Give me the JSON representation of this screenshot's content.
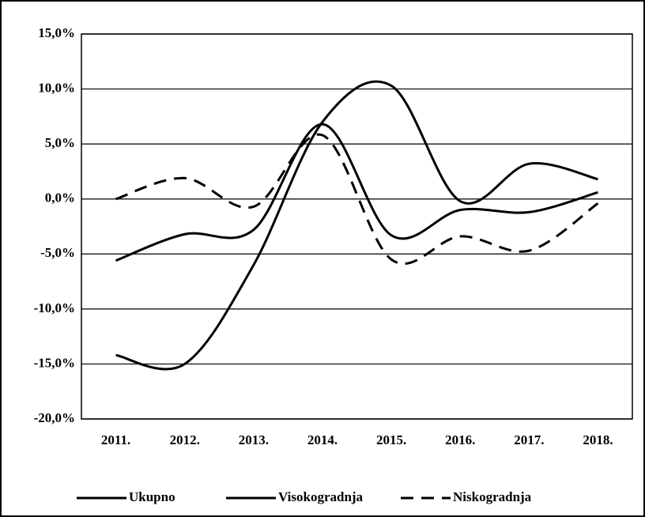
{
  "chart_data": {
    "type": "line",
    "categories": [
      "2011.",
      "2012.",
      "2013.",
      "2014.",
      "2015.",
      "2016.",
      "2017.",
      "2018."
    ],
    "series": [
      {
        "name": "Ukupno",
        "color": "#000000",
        "line_style": "solid",
        "values": [
          -5.6,
          -3.2,
          -2.8,
          6.8,
          -3.3,
          -1.0,
          -1.2,
          0.6
        ]
      },
      {
        "name": "Visokogradnja",
        "color": "#000000",
        "line_style": "solid",
        "values": [
          -14.2,
          -15.0,
          -6.0,
          7.0,
          10.3,
          -0.2,
          3.2,
          1.8
        ]
      },
      {
        "name": "Niskogradnja",
        "color": "#000000",
        "line_style": "dashed",
        "values": [
          0.0,
          1.9,
          -0.7,
          5.8,
          -5.5,
          -3.4,
          -4.7,
          -0.4
        ]
      }
    ],
    "ylim": [
      -20,
      15
    ],
    "yticks": [
      {
        "value": -20,
        "label": "-20,0%"
      },
      {
        "value": -15,
        "label": "-15,0%"
      },
      {
        "value": -10,
        "label": "-10,0%"
      },
      {
        "value": -5,
        "label": "-5,0%"
      },
      {
        "value": 0,
        "label": "0,0%"
      },
      {
        "value": 5,
        "label": "5,0%"
      },
      {
        "value": 10,
        "label": "10,0%"
      },
      {
        "value": 15,
        "label": "15,0%"
      }
    ],
    "grid": true,
    "legend": "bottom"
  }
}
